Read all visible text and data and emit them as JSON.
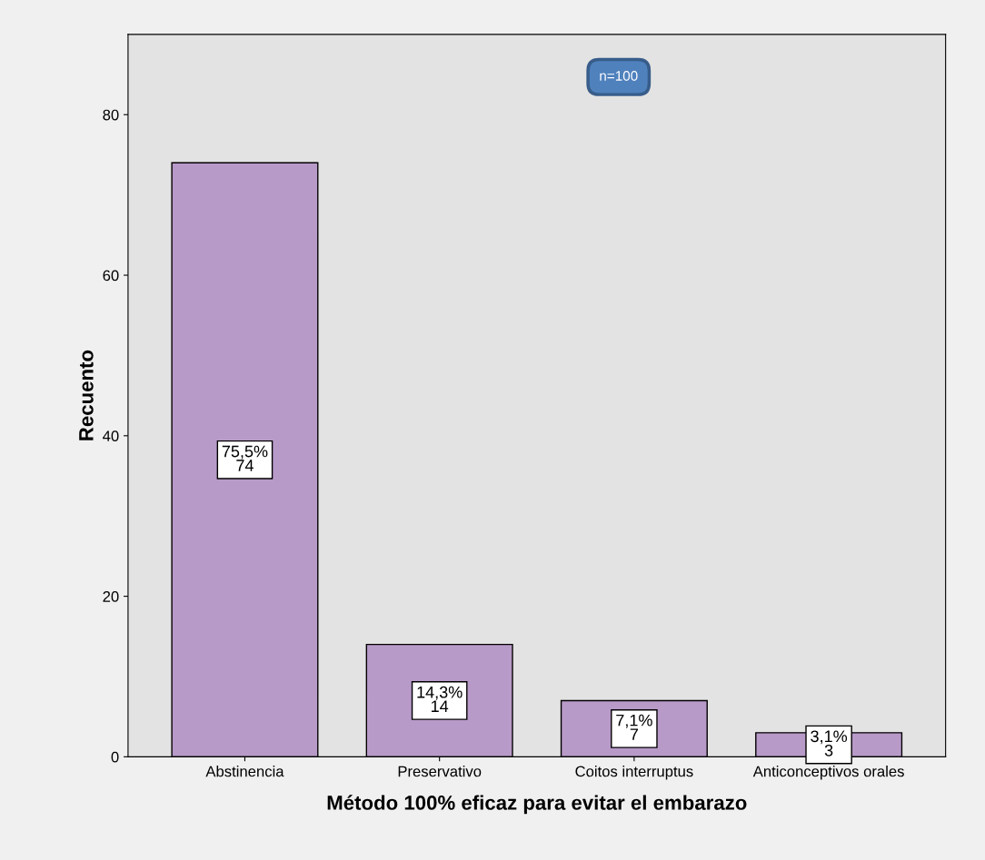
{
  "chart_data": {
    "type": "bar",
    "xlabel": "Método 100% eficaz para evitar el embarazo",
    "ylabel": "Recuento",
    "categories": [
      "Abstinencia",
      "Preservativo",
      "Coitos interruptus",
      "Anticonceptivos orales"
    ],
    "values": [
      74,
      14,
      7,
      3
    ],
    "color": "#b89ac8",
    "value_labels": [
      "75,5%\n74",
      "14,3%\n14",
      "7,1%\n7",
      "3,1%\n3"
    ],
    "annotations": [
      "n=100"
    ],
    "ylim": [
      0,
      90
    ],
    "yticks": [
      0,
      20,
      40,
      60,
      80
    ],
    "grid": false
  }
}
